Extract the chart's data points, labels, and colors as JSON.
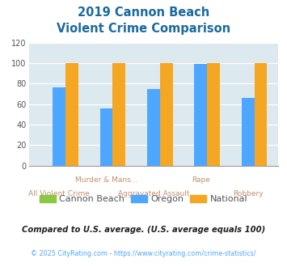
{
  "title_line1": "2019 Cannon Beach",
  "title_line2": "Violent Crime Comparison",
  "categories": [
    "All Violent Crime",
    "Murder & Mans...",
    "Aggravated Assault",
    "Rape",
    "Robbery"
  ],
  "cannon_beach": [
    0,
    0,
    0,
    0,
    0
  ],
  "oregon": [
    76,
    56,
    75,
    99,
    66
  ],
  "national": [
    100,
    100,
    100,
    100,
    100
  ],
  "ylim": [
    0,
    120
  ],
  "yticks": [
    0,
    20,
    40,
    60,
    80,
    100,
    120
  ],
  "color_cannon": "#8dc63f",
  "color_oregon": "#4da6ff",
  "color_national": "#f5a623",
  "bg_color": "#dce9ee",
  "title_color": "#1a6aa0",
  "label_color_upper": "#c09070",
  "label_color_lower": "#c09070",
  "footer_text": "Compared to U.S. average. (U.S. average equals 100)",
  "copyright_text": "© 2025 CityRating.com - https://www.cityrating.com/crime-statistics/",
  "footer_color": "#222222",
  "copyright_color": "#4da6ff",
  "upper_labels": [
    1,
    3
  ],
  "lower_labels": [
    0,
    2,
    4
  ]
}
